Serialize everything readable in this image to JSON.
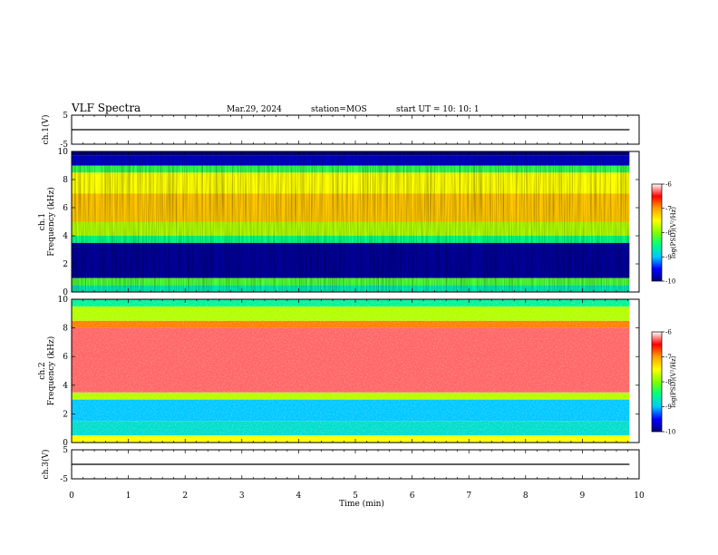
{
  "header": {
    "title": "VLF Spectra",
    "date": "Mar.29, 2024",
    "station": "station=MOS",
    "start": "start  UT =   10: 10: 1"
  },
  "chart_data": [
    {
      "type": "line",
      "name": "ch1-voltage",
      "ylabel": "ch.1(V)",
      "ylim": [
        -5,
        5
      ],
      "yticks": [
        "5",
        "-5"
      ],
      "xlim": [
        0,
        10
      ],
      "x": [
        0,
        9.83
      ],
      "y": [
        0,
        0
      ]
    },
    {
      "type": "heatmap",
      "name": "ch1-spectrogram",
      "ylabel": "ch.1 Frequency (kHz)",
      "ylim": [
        0,
        10
      ],
      "yticks": [
        "0",
        "2",
        "4",
        "6",
        "8",
        "10"
      ],
      "xlim": [
        0,
        10
      ],
      "data_end_min": 9.83,
      "frequency_bands_khz": [
        [
          0,
          0.5
        ],
        [
          0.5,
          1
        ],
        [
          1,
          3.5
        ],
        [
          3.5,
          4
        ],
        [
          4,
          5
        ],
        [
          5,
          7
        ],
        [
          7,
          8.5
        ],
        [
          8.5,
          9
        ],
        [
          9,
          9.7
        ],
        [
          9.7,
          10
        ]
      ],
      "band_level_log_psd": [
        -8.7,
        -8.2,
        -9.9,
        -8.5,
        -7.8,
        -7.2,
        -7.5,
        -8.3,
        -9.7,
        -10
      ],
      "colorbar": {
        "label": "log(PSD)(V²/Hz)",
        "range": [
          -10,
          -6
        ],
        "ticks": [
          "-6",
          "-7",
          "-8",
          "-9",
          "-10"
        ]
      }
    },
    {
      "type": "heatmap",
      "name": "ch2-spectrogram",
      "ylabel": "ch.2 Frequency (kHz)",
      "ylim": [
        0,
        10
      ],
      "yticks": [
        "0",
        "2",
        "4",
        "6",
        "8",
        "10"
      ],
      "xlim": [
        0,
        10
      ],
      "data_end_min": 9.83,
      "frequency_bands_khz": [
        [
          0,
          0.5
        ],
        [
          0.5,
          1.5
        ],
        [
          1.5,
          3
        ],
        [
          3,
          3.5
        ],
        [
          3.5,
          8
        ],
        [
          8,
          8.5
        ],
        [
          8.5,
          9.5
        ],
        [
          9.5,
          10
        ]
      ],
      "band_level_log_psd": [
        -7.5,
        -8.8,
        -9.0,
        -7.8,
        -6.3,
        -6.9,
        -7.8,
        -8.6
      ],
      "colorbar": {
        "label": "log(PSD)(V²/Hz)",
        "range": [
          -10,
          -6
        ],
        "ticks": [
          "-6",
          "-7",
          "-8",
          "-9",
          "-10"
        ]
      }
    },
    {
      "type": "line",
      "name": "ch3-voltage",
      "ylabel": "ch.3(V)",
      "ylim": [
        -5,
        5
      ],
      "yticks": [
        "5",
        "-5"
      ],
      "xlim": [
        0,
        10
      ],
      "x": [
        0,
        9.83
      ],
      "y": [
        0,
        0
      ]
    }
  ],
  "xaxis": {
    "label": "Time  (min)",
    "ticks": [
      "0",
      "1",
      "2",
      "3",
      "4",
      "5",
      "6",
      "7",
      "8",
      "9",
      "10"
    ]
  },
  "colors": {
    "scale": [
      "#00007f",
      "#0000ff",
      "#00c8ff",
      "#00ff80",
      "#80ff00",
      "#ffff00",
      "#ffa000",
      "#ff0000",
      "#ffffff"
    ]
  }
}
